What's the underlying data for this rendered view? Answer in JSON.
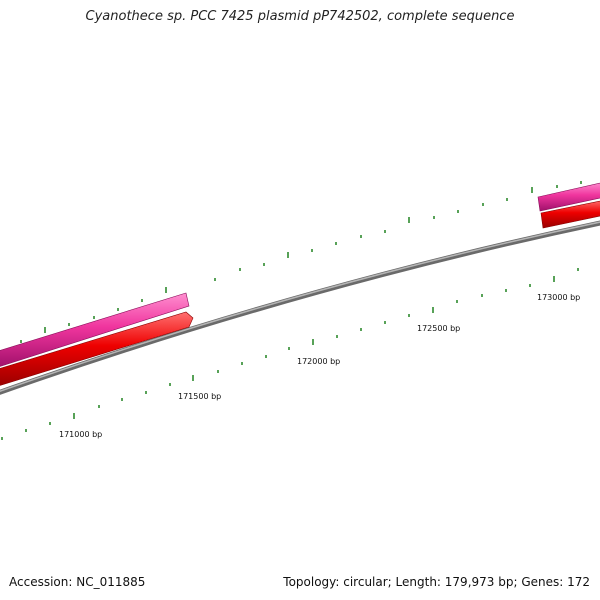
{
  "title": "Cyanothece sp. PCC 7425 plasmid pP742502, complete sequence",
  "footer": {
    "accession": "Accession: NC_011885",
    "summary": "Topology: circular; Length: 179,973 bp; Genes: 172"
  },
  "ruler": {
    "labels": [
      "171000 bp",
      "171500 bp",
      "172000 bp",
      "172500 bp",
      "173000 bp"
    ]
  },
  "colors": {
    "forward_strand": "#f0359e",
    "reverse_strand": "#ee0000",
    "backbone": "#808080",
    "ticks": "#2e8b2e"
  }
}
